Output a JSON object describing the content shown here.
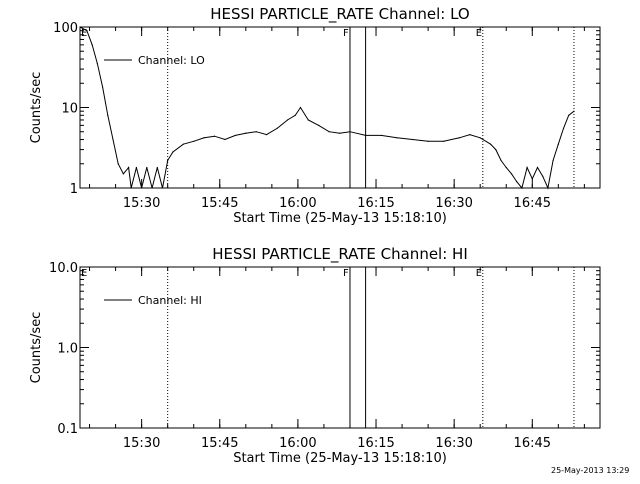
{
  "stamp": "25-May-2013 13:29",
  "chart_data": [
    {
      "type": "line",
      "title": "HESSI PARTICLE_RATE Channel: LO",
      "xlabel": "Start Time (25-May-13 15:18:10)",
      "ylabel": "Counts/sec",
      "y_scale": "log",
      "ylim": [
        1,
        100
      ],
      "y_ticks": [
        {
          "v": 1,
          "label": "1"
        },
        {
          "v": 10,
          "label": "10"
        },
        {
          "v": 100,
          "label": "100"
        }
      ],
      "xlim": [
        "15:18:10",
        "16:58:00"
      ],
      "x_ticks": [
        "15:30",
        "15:45",
        "16:00",
        "16:15",
        "16:30",
        "16:45"
      ],
      "legend": {
        "position": "top-left",
        "entries": [
          "Channel: LO"
        ]
      },
      "markers": [
        {
          "time": "15:35:00",
          "style": "dotted",
          "label": ""
        },
        {
          "time": "16:10:00",
          "style": "solid",
          "label": "F"
        },
        {
          "time": "16:13:00",
          "style": "solid",
          "label": ""
        },
        {
          "time": "16:35:30",
          "style": "dotted",
          "label": "E"
        },
        {
          "time": "16:53:00",
          "style": "dotted",
          "label": ""
        }
      ],
      "corner_label": "E",
      "series": [
        {
          "name": "Channel: LO",
          "x": [
            "15:18:10",
            "15:19:30",
            "15:20:30",
            "15:21:30",
            "15:22:30",
            "15:23:30",
            "15:24:30",
            "15:25:30",
            "15:26:30",
            "15:27:30",
            "15:28:00",
            "15:29:00",
            "15:30:00",
            "15:31:00",
            "15:32:00",
            "15:33:00",
            "15:34:00",
            "15:35:00",
            "15:36:00",
            "15:38:00",
            "15:40:00",
            "15:42:00",
            "15:44:00",
            "15:46:00",
            "15:48:00",
            "15:50:00",
            "15:52:00",
            "15:54:00",
            "15:56:00",
            "15:58:00",
            "15:59:30",
            "16:00:30",
            "16:02:00",
            "16:04:00",
            "16:06:00",
            "16:08:00",
            "16:10:00",
            "16:13:00",
            "16:16:00",
            "16:19:00",
            "16:22:00",
            "16:25:00",
            "16:28:00",
            "16:31:00",
            "16:33:00",
            "16:35:00",
            "16:37:00",
            "16:38:00",
            "16:39:00",
            "16:40:00",
            "16:41:00",
            "16:42:00",
            "16:43:00",
            "16:44:00",
            "16:45:00",
            "16:46:00",
            "16:47:00",
            "16:48:00",
            "16:49:00",
            "16:50:00",
            "16:51:00",
            "16:52:00",
            "16:53:00"
          ],
          "values": [
            100,
            90,
            60,
            35,
            18,
            8,
            4,
            2,
            1.5,
            1.8,
            1,
            1.8,
            1,
            1.8,
            1,
            1.8,
            1,
            2.2,
            2.8,
            3.5,
            3.8,
            4.2,
            4.4,
            4,
            4.5,
            4.8,
            5,
            4.6,
            5.5,
            7,
            8,
            10,
            7,
            6,
            5,
            4.8,
            5,
            4.5,
            4.5,
            4.2,
            4,
            3.8,
            3.8,
            4.2,
            4.6,
            4.2,
            3.5,
            3,
            2.2,
            1.8,
            1.5,
            1.2,
            1,
            1.8,
            1.3,
            1.8,
            1.4,
            1,
            2.2,
            3.5,
            5.5,
            8,
            9
          ]
        }
      ]
    },
    {
      "type": "line",
      "title": "HESSI PARTICLE_RATE Channel: HI",
      "xlabel": "Start Time (25-May-13 15:18:10)",
      "ylabel": "Counts/sec",
      "y_scale": "log",
      "ylim": [
        0.1,
        10
      ],
      "y_ticks": [
        {
          "v": 0.1,
          "label": "0.1"
        },
        {
          "v": 1,
          "label": "1.0"
        },
        {
          "v": 10,
          "label": "10.0"
        }
      ],
      "xlim": [
        "15:18:10",
        "16:58:00"
      ],
      "x_ticks": [
        "15:30",
        "15:45",
        "16:00",
        "16:15",
        "16:30",
        "16:45"
      ],
      "legend": {
        "position": "top-left",
        "entries": [
          "Channel: HI"
        ]
      },
      "markers": [
        {
          "time": "15:35:00",
          "style": "dotted",
          "label": ""
        },
        {
          "time": "16:10:00",
          "style": "solid",
          "label": "F"
        },
        {
          "time": "16:13:00",
          "style": "solid",
          "label": ""
        },
        {
          "time": "16:35:30",
          "style": "dotted",
          "label": "E"
        },
        {
          "time": "16:53:00",
          "style": "dotted",
          "label": ""
        }
      ],
      "corner_label": "E",
      "series": []
    }
  ]
}
